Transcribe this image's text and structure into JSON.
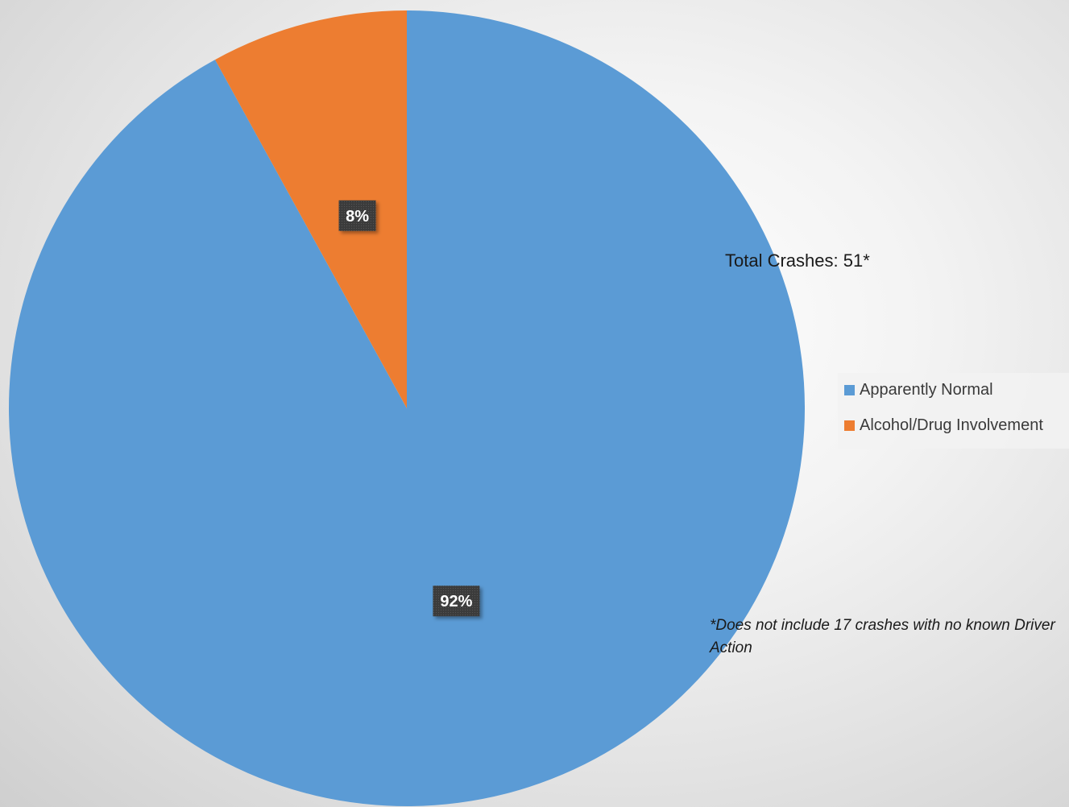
{
  "chart_data": {
    "type": "pie",
    "title": "",
    "categories": [
      "Apparently Normal",
      "Alcohol/Drug Involvement"
    ],
    "values": [
      92,
      8
    ],
    "value_labels": [
      "92%",
      "8%"
    ],
    "unit": "%",
    "colors": [
      "#5b9bd5",
      "#ed7d31"
    ],
    "legend_placement": "right",
    "annotations": {
      "total": "Total Crashes: 51*",
      "footnote": "*Does not include 17 crashes with no known Driver Action"
    }
  }
}
